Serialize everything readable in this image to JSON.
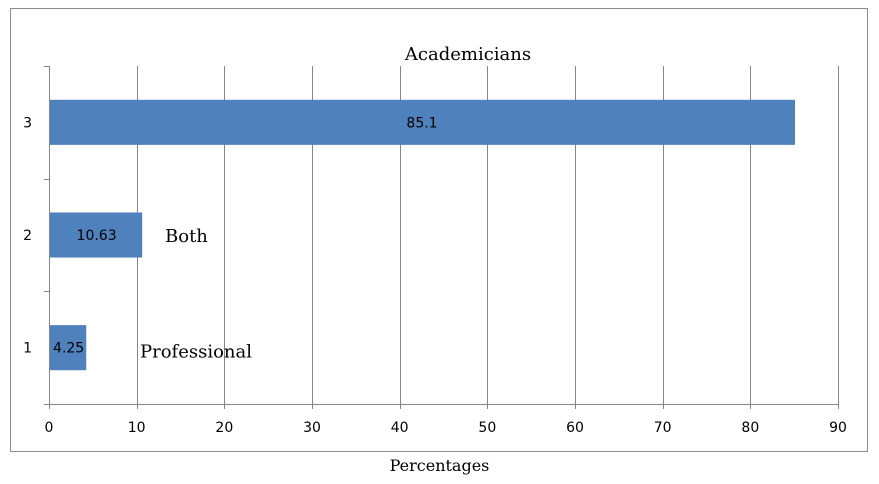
{
  "chart_data": {
    "type": "bar",
    "orientation": "horizontal",
    "categories": [
      "1",
      "2",
      "3"
    ],
    "values": [
      4.25,
      10.63,
      85.1
    ],
    "data_labels": [
      "4.25",
      "10.63",
      "85.1"
    ],
    "annotations": [
      "Professional",
      "Both",
      "Academicians"
    ],
    "xlabel": "Percentages",
    "ylabel": "",
    "title": "",
    "xlim": [
      0,
      90
    ],
    "xticks": [
      0,
      10,
      20,
      30,
      40,
      50,
      60,
      70,
      80,
      90
    ],
    "grid": true,
    "bar_color": "#4f81bd"
  }
}
